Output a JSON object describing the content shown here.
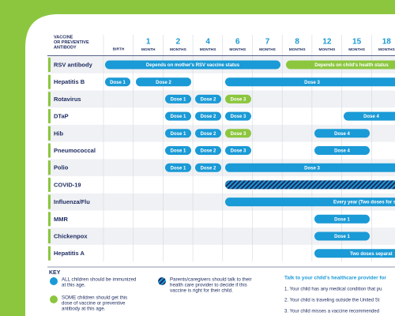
{
  "header": {
    "title_lines": [
      "VACCINE",
      "OR PREVENTIVE",
      "ANTIBODY"
    ],
    "columns": [
      {
        "label": "BIRTH"
      },
      {
        "number": "1",
        "unit": "MONTH"
      },
      {
        "number": "2",
        "unit": "MONTHS"
      },
      {
        "number": "4",
        "unit": "MONTHS"
      },
      {
        "number": "6",
        "unit": "MONTHS"
      },
      {
        "number": "7",
        "unit": "MONTHS"
      },
      {
        "number": "8",
        "unit": "MONTHS"
      },
      {
        "number": "12",
        "unit": "MONTHS"
      },
      {
        "number": "15",
        "unit": "MONTHS"
      },
      {
        "number": "18",
        "unit": "MONTHS"
      }
    ]
  },
  "rows": [
    {
      "name": "RSV antibody",
      "doses": [
        "Depends on mother's RSV vaccine status",
        "Depends on child's health status"
      ]
    },
    {
      "name": "Hepatitis B",
      "doses": [
        "Dose 1",
        "Dose 2",
        "Dose 3"
      ]
    },
    {
      "name": "Rotavirus",
      "doses": [
        "Dose 1",
        "Dose 2",
        "Dose 3"
      ]
    },
    {
      "name": "DTaP",
      "doses": [
        "Dose 1",
        "Dose 2",
        "Dose 3",
        "Dose 4"
      ]
    },
    {
      "name": "Hib",
      "doses": [
        "Dose 1",
        "Dose 2",
        "Dose 3",
        "Dose 4"
      ]
    },
    {
      "name": "Pneumococcal",
      "doses": [
        "Dose 1",
        "Dose 2",
        "Dose 3",
        "Dose 4"
      ]
    },
    {
      "name": "Polio",
      "doses": [
        "Dose 1",
        "Dose 2",
        "Dose 3"
      ]
    },
    {
      "name": "COVID-19",
      "doses": []
    },
    {
      "name": "Influenza/Flu",
      "doses": [
        "Every year (Two doses for so"
      ]
    },
    {
      "name": "MMR",
      "doses": [
        "Dose 1"
      ]
    },
    {
      "name": "Chickenpox",
      "doses": [
        "Dose 1"
      ]
    },
    {
      "name": "Hepatitis A",
      "doses": [
        "Two doses separat"
      ]
    }
  ],
  "key": {
    "title": "KEY",
    "items": [
      {
        "lines": [
          "ALL children should be immunized",
          "at this age."
        ]
      },
      {
        "lines": [
          "SOME children should get this",
          "dose of vaccine or preventive",
          "antibody at this age."
        ]
      },
      {
        "lines": [
          "Parents/caregivers should talk to their",
          "health care provider to decide if this",
          "vaccine is right for their child."
        ]
      }
    ]
  },
  "talk": {
    "heading": "Talk to your child's healthcare provider for",
    "items": [
      "1. Your child has any medical condition that pu",
      "2. Your child is traveling outside the United St",
      "3. Your child misses a vaccine recommended"
    ]
  }
}
